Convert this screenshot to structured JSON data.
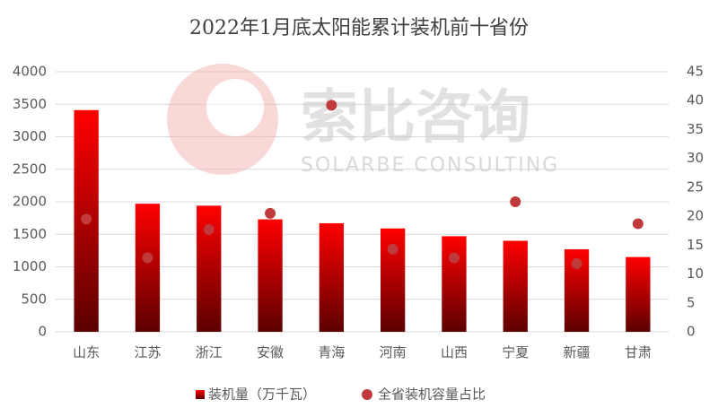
{
  "chart_data": {
    "type": "bar_scatter",
    "title": "2022年1月底太阳能累计装机前十省份",
    "watermark": "索比咨询",
    "watermark_subtitle": "SOLARBE CONSULTING",
    "categories": [
      "山东",
      "江苏",
      "浙江",
      "安徽",
      "青海",
      "河南",
      "山西",
      "宁夏",
      "新疆",
      "甘肃"
    ],
    "series": [
      {
        "name": "装机量（万千瓦）",
        "color": "#e00000",
        "values": [
          3410,
          1970,
          1940,
          1730,
          1670,
          1590,
          1470,
          1400,
          1270,
          1150
        ]
      },
      {
        "name": "全省装机容量占比",
        "color": "#c0393b",
        "axis": "y2",
        "values": [
          19.5,
          12.8,
          17.7,
          20.5,
          39.2,
          14.3,
          12.8,
          22.5,
          11.8,
          18.7
        ]
      }
    ],
    "ylim": [
      0,
      4000
    ],
    "yticks": [
      0,
      500,
      1000,
      1500,
      2000,
      2500,
      3000,
      3500,
      4000
    ],
    "y2lim": [
      0,
      45
    ],
    "y2ticks": [
      0,
      5,
      10,
      15,
      20,
      25,
      30,
      35,
      40,
      45
    ],
    "grid": true,
    "legend": "bottom"
  }
}
